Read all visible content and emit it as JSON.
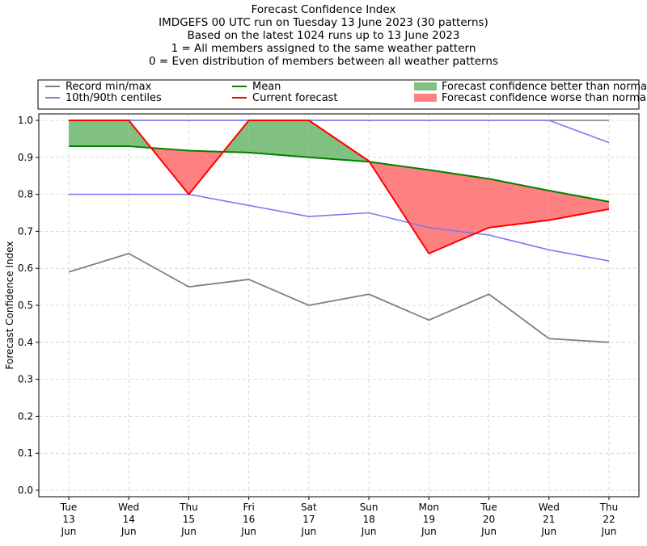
{
  "chart_data": {
    "type": "line",
    "title_lines": [
      "Forecast Confidence Index",
      "IMDGEFS 00 UTC run on Tuesday 13 June 2023 (30 patterns)",
      "Based on the latest 1024 runs up to 13 June 2023",
      "1 = All members assigned to the same weather pattern",
      "0 = Even distribution of members between all weather patterns"
    ],
    "ylabel": "Forecast Confidence Index",
    "ylim": [
      0.0,
      1.0
    ],
    "yticks": [
      "0.0",
      "0.1",
      "0.2",
      "0.3",
      "0.4",
      "0.5",
      "0.6",
      "0.7",
      "0.8",
      "0.9",
      "1.0"
    ],
    "x_labels": [
      [
        "Tue",
        "13",
        "Jun"
      ],
      [
        "Wed",
        "14",
        "Jun"
      ],
      [
        "Thu",
        "15",
        "Jun"
      ],
      [
        "Fri",
        "16",
        "Jun"
      ],
      [
        "Sat",
        "17",
        "Jun"
      ],
      [
        "Sun",
        "18",
        "Jun"
      ],
      [
        "Mon",
        "19",
        "Jun"
      ],
      [
        "Tue",
        "20",
        "Jun"
      ],
      [
        "Wed",
        "21",
        "Jun"
      ],
      [
        "Thu",
        "22",
        "Jun"
      ]
    ],
    "grid": true,
    "legend": [
      {
        "label": "Record min/max",
        "kind": "line",
        "color": "#7f7f7f"
      },
      {
        "label": "10th/90th centiles",
        "kind": "line",
        "color": "#7b7bf0"
      },
      {
        "label": "Mean",
        "kind": "line",
        "color": "#008000"
      },
      {
        "label": "Current forecast",
        "kind": "line",
        "color": "#ff0000"
      },
      {
        "label": "Forecast confidence better than normal",
        "kind": "patch",
        "color": "#80c080"
      },
      {
        "label": "Forecast confidence worse than normal",
        "kind": "patch",
        "color": "#ff8080"
      }
    ],
    "series": {
      "record_min": [
        0.59,
        0.64,
        0.55,
        0.57,
        0.5,
        0.53,
        0.46,
        0.53,
        0.41,
        0.4
      ],
      "record_max": [
        1.0,
        1.0,
        1.0,
        1.0,
        1.0,
        1.0,
        1.0,
        1.0,
        1.0,
        1.0
      ],
      "p10": [
        0.8,
        0.8,
        0.8,
        0.77,
        0.74,
        0.75,
        0.71,
        0.69,
        0.65,
        0.62
      ],
      "p90": [
        1.0,
        1.0,
        1.0,
        1.0,
        1.0,
        1.0,
        1.0,
        1.0,
        1.0,
        0.94
      ],
      "mean": [
        0.93,
        0.93,
        0.918,
        0.913,
        0.9,
        0.888,
        0.866,
        0.842,
        0.81,
        0.78
      ],
      "current": [
        1.0,
        1.0,
        0.8,
        1.0,
        1.0,
        0.89,
        0.64,
        0.71,
        0.73,
        0.76
      ]
    }
  }
}
